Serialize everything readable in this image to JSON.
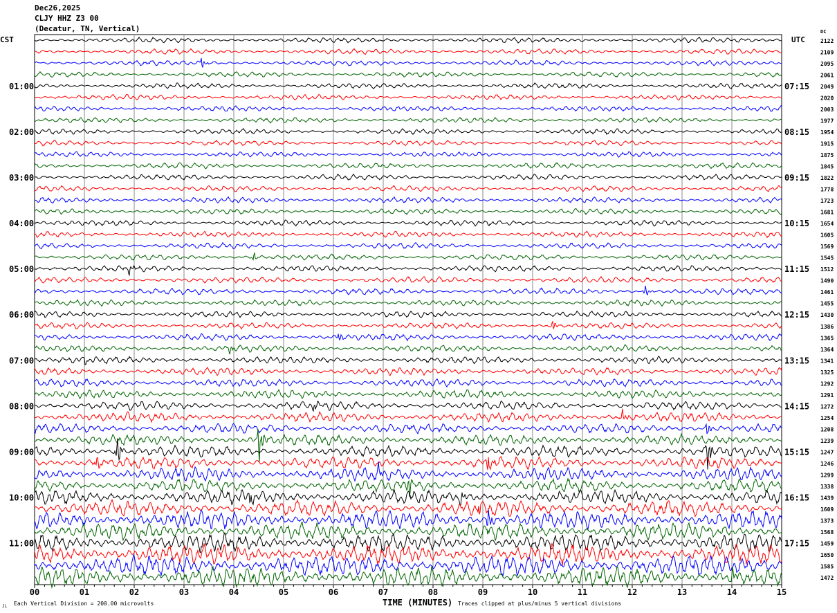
{
  "header": {
    "date": "Dec26,2025",
    "station": "CLJY HHZ Z3 00",
    "location": "(Decatur, TN, Vertical)"
  },
  "left_axis_title": "CST",
  "right_axis_title": "UTC",
  "dc_title": "DC",
  "footer": {
    "scale": "Each Vertical Division =  200.00 microvolts",
    "xlabel": "TIME (MINUTES)",
    "clip_note": "Traces clipped at plus/minus 5 vertical divisions",
    "corner_mark": "JL"
  },
  "chart_data": {
    "type": "line",
    "title": "CLJY HHZ Z3 00 helicorder",
    "xlabel": "TIME (MINUTES)",
    "xlim": [
      0,
      15
    ],
    "x_ticks": [
      "00",
      "01",
      "02",
      "03",
      "04",
      "05",
      "06",
      "07",
      "08",
      "09",
      "10",
      "11",
      "12",
      "13",
      "14",
      "15"
    ],
    "left_hour_labels": [
      {
        "row": 4,
        "label": "01:00"
      },
      {
        "row": 8,
        "label": "02:00"
      },
      {
        "row": 12,
        "label": "03:00"
      },
      {
        "row": 16,
        "label": "04:00"
      },
      {
        "row": 20,
        "label": "05:00"
      },
      {
        "row": 24,
        "label": "06:00"
      },
      {
        "row": 28,
        "label": "07:00"
      },
      {
        "row": 32,
        "label": "08:00"
      },
      {
        "row": 36,
        "label": "09:00"
      },
      {
        "row": 40,
        "label": "10:00"
      },
      {
        "row": 44,
        "label": "11:00"
      }
    ],
    "right_hour_labels": [
      {
        "row": 4,
        "label": "07:15"
      },
      {
        "row": 8,
        "label": "08:15"
      },
      {
        "row": 12,
        "label": "09:15"
      },
      {
        "row": 16,
        "label": "10:15"
      },
      {
        "row": 20,
        "label": "11:15"
      },
      {
        "row": 24,
        "label": "12:15"
      },
      {
        "row": 28,
        "label": "13:15"
      },
      {
        "row": 32,
        "label": "14:15"
      },
      {
        "row": 36,
        "label": "15:15"
      },
      {
        "row": 40,
        "label": "16:15"
      },
      {
        "row": 44,
        "label": "17:15"
      }
    ],
    "trace_colors": [
      "#000000",
      "#ff0000",
      "#0000ff",
      "#006400"
    ],
    "dc_offsets": [
      "2122",
      "2109",
      "2095",
      "2061",
      "2049",
      "2020",
      "2003",
      "1977",
      "1954",
      "1915",
      "1875",
      "1845",
      "1822",
      "1778",
      "1723",
      "1681",
      "1654",
      "1605",
      "1569",
      "1545",
      "1512",
      "1490",
      "1461",
      "1455",
      "1430",
      "1386",
      "1365",
      "1364",
      "1341",
      "1325",
      "1292",
      "1291",
      "1272",
      "1254",
      "1208",
      "1239",
      "1247",
      "1246",
      "1299",
      "1338",
      "1439",
      "1609",
      "1373",
      "1568",
      "1459",
      "1650",
      "1585",
      "1472"
    ],
    "background_amplitude": [
      0.12,
      0.12,
      0.12,
      0.12,
      0.12,
      0.12,
      0.12,
      0.12,
      0.12,
      0.12,
      0.12,
      0.13,
      0.13,
      0.13,
      0.13,
      0.13,
      0.13,
      0.13,
      0.13,
      0.13,
      0.14,
      0.14,
      0.14,
      0.14,
      0.14,
      0.14,
      0.15,
      0.15,
      0.16,
      0.17,
      0.18,
      0.19,
      0.2,
      0.22,
      0.22,
      0.24,
      0.26,
      0.28,
      0.3,
      0.3,
      0.32,
      0.36,
      0.4,
      0.38,
      0.42,
      0.45,
      0.48,
      0.45
    ],
    "events": [
      {
        "row": 2,
        "minute": 3.35,
        "amplitude": 0.5
      },
      {
        "row": 19,
        "minute": 4.4,
        "amplitude": 0.5
      },
      {
        "row": 20,
        "minute": 1.9,
        "amplitude": 0.45
      },
      {
        "row": 22,
        "minute": 12.25,
        "amplitude": 0.6
      },
      {
        "row": 25,
        "minute": 10.4,
        "amplitude": 0.5
      },
      {
        "row": 26,
        "minute": 6.1,
        "amplitude": 0.4
      },
      {
        "row": 27,
        "minute": 3.9,
        "amplitude": 0.4
      },
      {
        "row": 28,
        "minute": 1.0,
        "amplitude": 0.4
      },
      {
        "row": 32,
        "minute": 5.6,
        "amplitude": 0.5
      },
      {
        "row": 33,
        "minute": 11.8,
        "amplitude": 0.6
      },
      {
        "row": 34,
        "minute": 13.5,
        "amplitude": 0.6
      },
      {
        "row": 35,
        "minute": 4.5,
        "amplitude": 2.2
      },
      {
        "row": 36,
        "minute": 1.65,
        "amplitude": 1.6
      },
      {
        "row": 36,
        "minute": 13.5,
        "amplitude": 1.9
      },
      {
        "row": 37,
        "minute": 1.25,
        "amplitude": 0.6
      },
      {
        "row": 37,
        "minute": 9.1,
        "amplitude": 0.9
      },
      {
        "row": 38,
        "minute": 6.9,
        "amplitude": 0.6
      },
      {
        "row": 39,
        "minute": 7.5,
        "amplitude": 1.2
      },
      {
        "row": 40,
        "minute": 4.3,
        "amplitude": 0.8
      },
      {
        "row": 40,
        "minute": 8.55,
        "amplitude": 0.7
      },
      {
        "row": 41,
        "minute": 8.9,
        "amplitude": 1.0
      },
      {
        "row": 42,
        "minute": 9.1,
        "amplitude": 1.2
      },
      {
        "row": 47,
        "minute": 14.0,
        "amplitude": 0.8
      }
    ]
  }
}
